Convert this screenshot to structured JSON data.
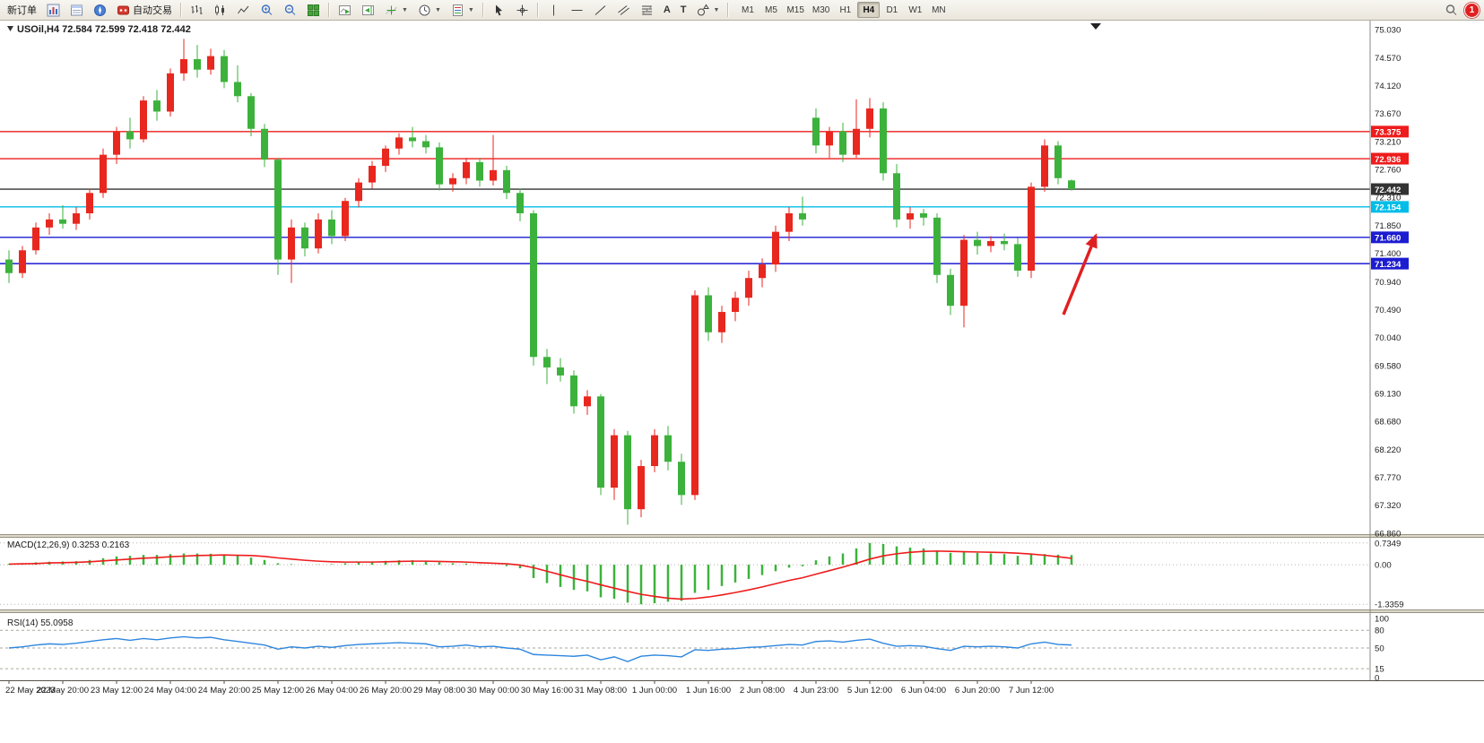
{
  "toolbar": {
    "new_order": "新订单",
    "autotrading": "自动交易",
    "timeframes": [
      "M1",
      "M5",
      "M15",
      "M30",
      "H1",
      "H4",
      "D1",
      "W1",
      "MN"
    ],
    "active_timeframe": "H4",
    "notification_count": "1",
    "icon_glyphs": {
      "text_tool": "A",
      "label_tool": "T"
    }
  },
  "chart": {
    "title": "USOil,H4 72.584 72.599 72.418 72.442",
    "macd_label": "MACD(12,26,9) 0.3253 0.2163",
    "rsi_label": "RSI(14) 55.0958"
  },
  "chart_data": {
    "type": "candlestick",
    "symbol": "USOil",
    "timeframe": "H4",
    "last_ohlc": {
      "open": 72.584,
      "high": 72.599,
      "low": 72.418,
      "close": 72.442
    },
    "ylim": [
      66.86,
      75.03
    ],
    "up_color": "#e8271f",
    "down_color": "#3cb23c",
    "price_axis_labels": [
      "75.030",
      "74.570",
      "74.120",
      "73.670",
      "73.210",
      "72.760",
      "72.310",
      "71.850",
      "71.400",
      "70.940",
      "70.490",
      "70.040",
      "69.580",
      "69.130",
      "68.680",
      "68.220",
      "67.770",
      "67.320",
      "66.860"
    ],
    "time_labels": [
      "22 May 2023",
      "22 May 20:00",
      "23 May 12:00",
      "24 May 04:00",
      "24 May 20:00",
      "25 May 12:00",
      "26 May 04:00",
      "26 May 20:00",
      "29 May 08:00",
      "30 May 00:00",
      "30 May 16:00",
      "31 May 08:00",
      "1 Jun 00:00",
      "1 Jun 16:00",
      "2 Jun 08:00",
      "4 Jun 23:00",
      "5 Jun 12:00",
      "6 Jun 04:00",
      "6 Jun 20:00",
      "7 Jun 12:00"
    ],
    "candles_per_label": 4,
    "levels": [
      {
        "price": 73.375,
        "label": "73.375",
        "color": "#ee1c1c"
      },
      {
        "price": 72.936,
        "label": "72.936",
        "color": "#ee1c1c"
      },
      {
        "price": 72.442,
        "label": "72.442",
        "color": "#333333"
      },
      {
        "price": 72.154,
        "label": "72.154",
        "color": "#00bde8"
      },
      {
        "price": 71.66,
        "label": "71.660",
        "color": "#1c1cd0"
      },
      {
        "price": 71.234,
        "label": "71.234",
        "color": "#1c1cd0"
      }
    ],
    "candles": [
      [
        71.3,
        71.45,
        70.92,
        71.08
      ],
      [
        71.08,
        71.52,
        71.0,
        71.45
      ],
      [
        71.45,
        71.9,
        71.38,
        71.82
      ],
      [
        71.82,
        72.05,
        71.7,
        71.95
      ],
      [
        71.95,
        72.18,
        71.8,
        71.88
      ],
      [
        71.88,
        72.15,
        71.78,
        72.05
      ],
      [
        72.05,
        72.45,
        71.95,
        72.38
      ],
      [
        72.38,
        73.1,
        72.3,
        73.0
      ],
      [
        73.0,
        73.45,
        72.85,
        73.38
      ],
      [
        73.38,
        73.6,
        73.1,
        73.25
      ],
      [
        73.25,
        73.95,
        73.2,
        73.88
      ],
      [
        73.88,
        74.05,
        73.55,
        73.7
      ],
      [
        73.7,
        74.4,
        73.62,
        74.32
      ],
      [
        74.32,
        74.88,
        74.2,
        74.55
      ],
      [
        74.55,
        74.78,
        74.25,
        74.38
      ],
      [
        74.38,
        74.72,
        74.3,
        74.6
      ],
      [
        74.6,
        74.7,
        74.08,
        74.18
      ],
      [
        74.18,
        74.45,
        73.85,
        73.95
      ],
      [
        73.95,
        74.0,
        73.3,
        73.42
      ],
      [
        73.42,
        73.5,
        72.8,
        72.92
      ],
      [
        72.92,
        72.95,
        71.05,
        71.3
      ],
      [
        71.3,
        71.95,
        70.92,
        71.82
      ],
      [
        71.82,
        71.9,
        71.35,
        71.48
      ],
      [
        71.48,
        72.05,
        71.4,
        71.95
      ],
      [
        71.95,
        72.1,
        71.55,
        71.68
      ],
      [
        71.68,
        72.3,
        71.6,
        72.25
      ],
      [
        72.25,
        72.62,
        72.15,
        72.55
      ],
      [
        72.55,
        72.9,
        72.45,
        72.82
      ],
      [
        72.82,
        73.15,
        72.72,
        73.1
      ],
      [
        73.1,
        73.35,
        73.0,
        73.28
      ],
      [
        73.28,
        73.45,
        73.12,
        73.22
      ],
      [
        73.22,
        73.32,
        73.02,
        73.12
      ],
      [
        73.12,
        73.2,
        72.42,
        72.52
      ],
      [
        72.52,
        72.7,
        72.4,
        72.62
      ],
      [
        72.62,
        72.95,
        72.52,
        72.88
      ],
      [
        72.88,
        72.95,
        72.48,
        72.58
      ],
      [
        72.58,
        73.32,
        72.5,
        72.75
      ],
      [
        72.75,
        72.82,
        72.28,
        72.38
      ],
      [
        72.38,
        72.45,
        71.92,
        72.05
      ],
      [
        72.05,
        72.1,
        69.58,
        69.72
      ],
      [
        69.72,
        69.85,
        69.28,
        69.55
      ],
      [
        69.55,
        69.7,
        69.32,
        69.42
      ],
      [
        69.42,
        69.5,
        68.8,
        68.92
      ],
      [
        68.92,
        69.18,
        68.78,
        69.08
      ],
      [
        69.08,
        69.12,
        67.48,
        67.6
      ],
      [
        67.6,
        68.55,
        67.4,
        68.45
      ],
      [
        68.45,
        68.52,
        67.0,
        67.25
      ],
      [
        67.25,
        68.05,
        67.12,
        67.95
      ],
      [
        67.95,
        68.55,
        67.85,
        68.45
      ],
      [
        68.45,
        68.6,
        67.88,
        68.02
      ],
      [
        68.02,
        68.15,
        67.32,
        67.48
      ],
      [
        67.48,
        70.8,
        67.4,
        70.72
      ],
      [
        70.72,
        70.85,
        69.98,
        70.12
      ],
      [
        70.12,
        70.55,
        69.95,
        70.45
      ],
      [
        70.45,
        70.78,
        70.3,
        70.68
      ],
      [
        70.68,
        71.12,
        70.55,
        71.0
      ],
      [
        71.0,
        71.32,
        70.85,
        71.22
      ],
      [
        71.22,
        71.85,
        71.1,
        71.75
      ],
      [
        71.75,
        72.15,
        71.6,
        72.05
      ],
      [
        72.05,
        72.32,
        71.85,
        71.95
      ],
      [
        73.6,
        73.75,
        73.02,
        73.15
      ],
      [
        73.15,
        73.45,
        72.95,
        73.38
      ],
      [
        73.38,
        73.52,
        72.88,
        73.0
      ],
      [
        73.0,
        73.9,
        72.95,
        73.42
      ],
      [
        73.42,
        73.92,
        73.28,
        73.75
      ],
      [
        73.75,
        73.85,
        72.58,
        72.7
      ],
      [
        72.7,
        72.85,
        71.82,
        71.95
      ],
      [
        71.95,
        72.15,
        71.8,
        72.05
      ],
      [
        72.05,
        72.12,
        71.85,
        71.98
      ],
      [
        71.98,
        72.05,
        70.92,
        71.05
      ],
      [
        71.05,
        71.15,
        70.4,
        70.55
      ],
      [
        70.55,
        71.7,
        70.2,
        71.62
      ],
      [
        71.62,
        71.75,
        71.38,
        71.52
      ],
      [
        71.52,
        71.68,
        71.42,
        71.6
      ],
      [
        71.6,
        71.72,
        71.45,
        71.55
      ],
      [
        71.55,
        71.65,
        71.02,
        71.12
      ],
      [
        71.12,
        72.55,
        71.0,
        72.48
      ],
      [
        72.48,
        73.25,
        72.4,
        73.15
      ],
      [
        73.15,
        73.22,
        72.52,
        72.62
      ],
      [
        72.584,
        72.599,
        72.418,
        72.442
      ]
    ],
    "macd": {
      "label": "MACD(12,26,9) 0.3253 0.2163",
      "params": "12,26,9",
      "histogram_color": "#3cb23c",
      "signal_color": "#ee1c1c",
      "axis_labels": [
        "0.7349",
        "0.00",
        "-1.3359"
      ],
      "ylim": [
        -1.45,
        0.85
      ],
      "histogram": [
        0.03,
        0.05,
        0.08,
        0.1,
        0.11,
        0.12,
        0.16,
        0.22,
        0.28,
        0.3,
        0.33,
        0.33,
        0.36,
        0.38,
        0.38,
        0.37,
        0.35,
        0.3,
        0.24,
        0.16,
        0.05,
        0.02,
        0.0,
        0.01,
        0.02,
        0.05,
        0.08,
        0.11,
        0.13,
        0.15,
        0.15,
        0.14,
        0.08,
        0.05,
        0.04,
        0.01,
        0.0,
        -0.05,
        -0.12,
        -0.45,
        -0.62,
        -0.75,
        -0.85,
        -0.9,
        -1.1,
        -1.15,
        -1.28,
        -1.3359,
        -1.3,
        -1.25,
        -1.22,
        -0.95,
        -0.85,
        -0.72,
        -0.6,
        -0.48,
        -0.35,
        -0.22,
        -0.1,
        -0.05,
        0.15,
        0.28,
        0.38,
        0.55,
        0.7349,
        0.7,
        0.62,
        0.58,
        0.55,
        0.48,
        0.4,
        0.42,
        0.4,
        0.38,
        0.36,
        0.3,
        0.34,
        0.36,
        0.34,
        0.3253
      ],
      "signal": [
        0.02,
        0.03,
        0.04,
        0.06,
        0.07,
        0.08,
        0.1,
        0.13,
        0.16,
        0.19,
        0.22,
        0.24,
        0.27,
        0.29,
        0.31,
        0.32,
        0.33,
        0.32,
        0.31,
        0.28,
        0.23,
        0.19,
        0.15,
        0.12,
        0.1,
        0.09,
        0.09,
        0.09,
        0.1,
        0.11,
        0.12,
        0.12,
        0.11,
        0.1,
        0.09,
        0.07,
        0.05,
        0.03,
        -0.01,
        -0.1,
        -0.22,
        -0.34,
        -0.46,
        -0.56,
        -0.68,
        -0.79,
        -0.9,
        -1.0,
        -1.07,
        -1.13,
        -1.16,
        -1.14,
        -1.09,
        -1.02,
        -0.94,
        -0.85,
        -0.75,
        -0.64,
        -0.53,
        -0.44,
        -0.32,
        -0.2,
        -0.08,
        0.05,
        0.19,
        0.3,
        0.37,
        0.42,
        0.45,
        0.46,
        0.45,
        0.44,
        0.43,
        0.42,
        0.41,
        0.39,
        0.36,
        0.32,
        0.27,
        0.2163
      ]
    },
    "rsi": {
      "label": "RSI(14) 55.0958",
      "line_color": "#2e86de",
      "axis_labels": [
        "100",
        "80",
        "50",
        "15",
        "0"
      ],
      "levels": [
        80,
        50,
        15
      ],
      "ylim": [
        0,
        100
      ],
      "values": [
        50,
        52,
        55,
        57,
        56,
        58,
        61,
        64,
        66,
        63,
        66,
        64,
        67,
        69,
        67,
        68,
        64,
        61,
        58,
        55,
        48,
        52,
        50,
        53,
        51,
        54,
        56,
        57,
        58,
        59,
        58,
        57,
        52,
        53,
        55,
        52,
        53,
        50,
        48,
        39,
        38,
        37,
        36,
        38,
        30,
        35,
        27,
        36,
        38,
        37,
        35,
        47,
        46,
        48,
        49,
        51,
        52,
        54,
        56,
        55,
        61,
        62,
        60,
        63,
        65,
        58,
        53,
        54,
        53,
        49,
        46,
        53,
        52,
        53,
        52,
        50,
        57,
        60,
        56,
        55.1
      ]
    },
    "annotation_arrow": {
      "color": "#e02020"
    }
  }
}
